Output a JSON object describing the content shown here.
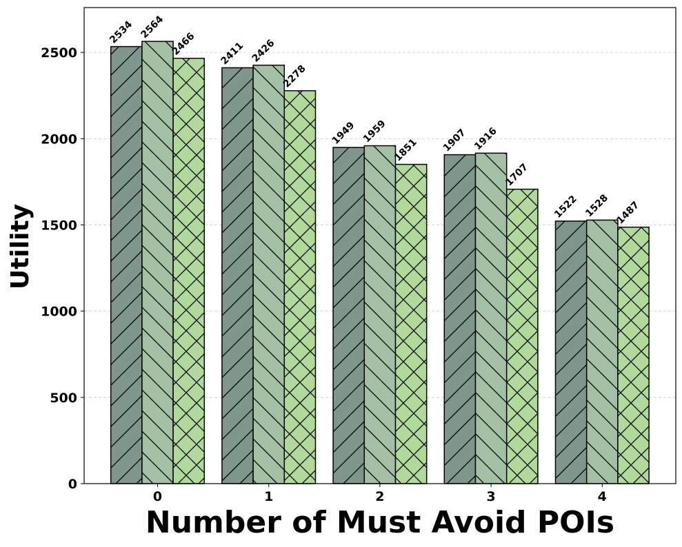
{
  "chart_data": {
    "type": "bar",
    "title": "",
    "xlabel": "Number of Must Avoid POIs",
    "ylabel": "Utility",
    "categories": [
      "0",
      "1",
      "2",
      "3",
      "4"
    ],
    "ylim": [
      0,
      2760
    ],
    "yticks": [
      0,
      500,
      1000,
      1500,
      2000,
      2500
    ],
    "grid": "horizontal dashed",
    "legend": "none",
    "series": [
      {
        "values": [
          2534,
          2411,
          1949,
          1907,
          1522
        ],
        "color": "#7f968c",
        "hatch": "forward-diagonal"
      },
      {
        "values": [
          2564,
          2426,
          1959,
          1916,
          1528
        ],
        "color": "#a3bfa4",
        "hatch": "backward-diagonal"
      },
      {
        "values": [
          2466,
          2278,
          1851,
          1707,
          1487
        ],
        "color": "#b0d99a",
        "hatch": "cross-diagonal"
      }
    ]
  }
}
